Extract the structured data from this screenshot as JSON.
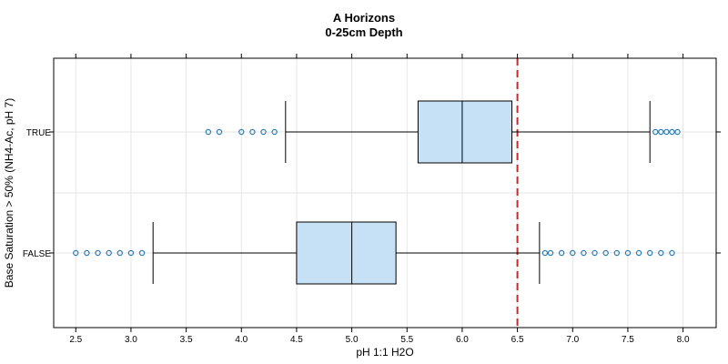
{
  "chart_data": {
    "type": "boxplot",
    "title": "A Horizons",
    "subtitle": "0-25cm Depth",
    "xlabel": "pH 1:1 H2O",
    "ylabel": "Base Saturation > 50% (NH4-Ac, pH 7)",
    "xlim": [
      2.3,
      8.3
    ],
    "x_ticks": [
      2.5,
      3.0,
      3.5,
      4.0,
      4.5,
      5.0,
      5.5,
      6.0,
      6.5,
      7.0,
      7.5,
      8.0
    ],
    "x_tick_labels": [
      "2.5",
      "3.0",
      "3.5",
      "4.0",
      "4.5",
      "5.0",
      "5.5",
      "6.0",
      "6.5",
      "7.0",
      "7.5",
      "8.0"
    ],
    "grid": true,
    "reference_line": {
      "x": 6.5,
      "color": "#c8282e",
      "style": "dashed"
    },
    "box_fill": "#c6e0f5",
    "outlier_color": "#2b7bb4",
    "groups": [
      {
        "label": "TRUE",
        "whisker_low": 4.4,
        "q1": 5.6,
        "median": 6.0,
        "q3": 6.45,
        "whisker_high": 7.7,
        "outliers": [
          3.7,
          3.8,
          4.0,
          4.1,
          4.2,
          4.3,
          7.75,
          7.8,
          7.85,
          7.9,
          7.95
        ]
      },
      {
        "label": "FALSE",
        "whisker_low": 3.2,
        "q1": 4.5,
        "median": 5.0,
        "q3": 5.4,
        "whisker_high": 6.7,
        "outliers": [
          2.5,
          2.6,
          2.7,
          2.8,
          2.9,
          3.0,
          3.1,
          6.75,
          6.8,
          6.9,
          7.0,
          7.1,
          7.2,
          7.3,
          7.4,
          7.5,
          7.6,
          7.7,
          7.8,
          7.9
        ]
      }
    ]
  }
}
